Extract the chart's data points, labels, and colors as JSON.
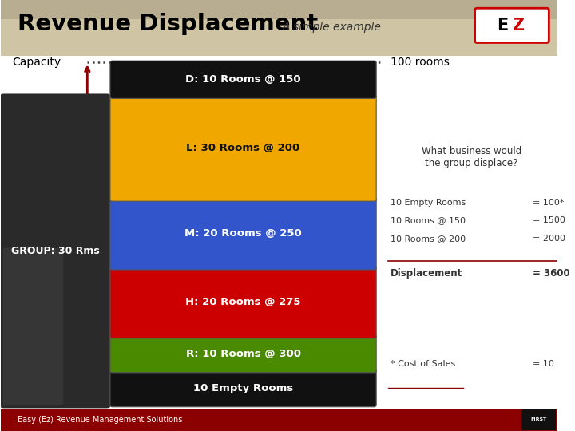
{
  "title": "Revenue Displacement",
  "subtitle": "A simple example",
  "bg_color": "#ffffff",
  "title_color": "#000000",
  "capacity_label": "Capacity",
  "capacity_value": "100 rooms",
  "arrow_color": "#8b0000",
  "segments": [
    {
      "label": "10 Empty Rooms",
      "rooms": 10,
      "color": "#111111",
      "text_color": "#ffffff"
    },
    {
      "label": "R: 10 Rooms @ 300",
      "rooms": 10,
      "color": "#4a8a00",
      "text_color": "#ffffff"
    },
    {
      "label": "H: 20 Rooms @ 275",
      "rooms": 20,
      "color": "#cc0000",
      "text_color": "#ffffff"
    },
    {
      "label": "M: 20 Rooms @ 250",
      "rooms": 20,
      "color": "#3355cc",
      "text_color": "#ffffff"
    },
    {
      "label": "L: 30 Rooms @ 200",
      "rooms": 30,
      "color": "#f0a800",
      "text_color": "#111111"
    },
    {
      "label": "D: 10 Rooms @ 150",
      "rooms": 10,
      "color": "#111111",
      "text_color": "#ffffff"
    }
  ],
  "group_label": "GROUP: 30 Rms",
  "right_text": "What business would\nthe group displace?",
  "right_stats": [
    [
      "10 Empty Rooms",
      "= 100*"
    ],
    [
      "10 Rooms @ 150",
      "= 1500"
    ],
    [
      "10 Rooms @ 200",
      "= 2000"
    ]
  ],
  "displacement_label": "Displacement",
  "displacement_value": "= 3600",
  "cost_label": "* Cost of Sales",
  "cost_value": "= 10",
  "footer_text": "Easy (Ez) Revenue Management Solutions",
  "footer_bg": "#8b0000",
  "footer_text_color": "#ffffff"
}
